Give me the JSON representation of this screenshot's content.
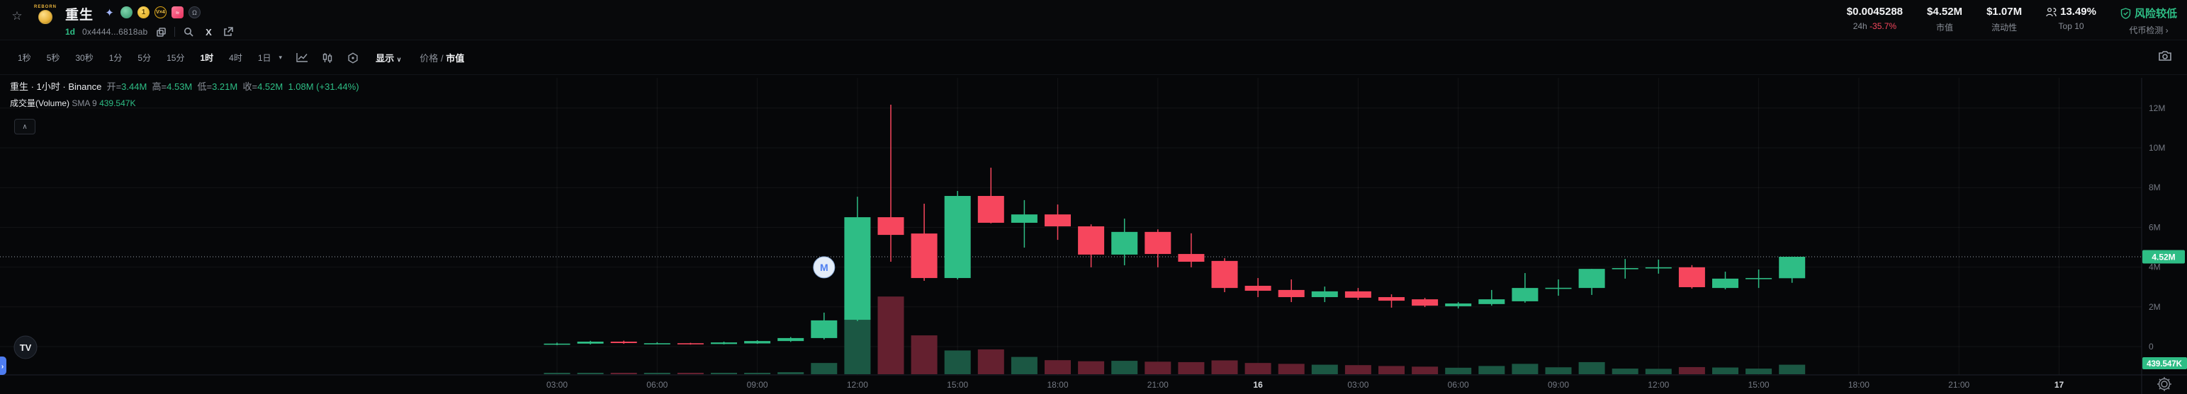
{
  "header": {
    "token": {
      "logo_text": "REBORN",
      "name": "重生",
      "age": "1d",
      "address": "0x4444...6818ab",
      "badges": [
        "sparkle-icon",
        "hand-icon",
        "coin-icon",
        "v-x4-icon",
        "pink-badge-icon",
        "ghost-icon"
      ],
      "vx4_label": "V×4",
      "coin_label": "1"
    },
    "stats": {
      "price": "$0.0045288",
      "change_label": "24h",
      "change": "-35.7%",
      "mcap": "$4.52M",
      "mcap_label": "市值",
      "liquidity": "$1.07M",
      "liquidity_label": "流动性",
      "top10": "13.49%",
      "top10_label": "Top 10",
      "risk": "风险较低",
      "risk_link": "代币检测 ›"
    }
  },
  "toolbar": {
    "timeframes": [
      "1秒",
      "5秒",
      "30秒",
      "1分",
      "5分",
      "15分",
      "1时",
      "4时",
      "1日"
    ],
    "active_timeframe": "1时",
    "display_label": "显示",
    "display_chevron": "∨",
    "price_label": "价格",
    "separator": "/",
    "mcap_label": "市值"
  },
  "legend": {
    "title": "重生 · 1小时 · Binance",
    "open_label": "开=",
    "open": "3.44M",
    "high_label": "高=",
    "high": "4.53M",
    "low_label": "低=",
    "low": "3.21M",
    "close_label": "收=",
    "close": "4.52M",
    "change": "1.08M (+31.44%)",
    "volume_label": "成交量(Volume)",
    "sma_label": "SMA 9",
    "volume_value": "439.547K",
    "collapse_glyph": "∧"
  },
  "colors": {
    "up": "#2ebd85",
    "down": "#f6465d",
    "vol_up": "#1b5743",
    "vol_down": "#64202f",
    "badge_bg": "#2ebd85",
    "grid": "rgba(255,255,255,0.055)",
    "axis_border": "#1e222a",
    "tab_blue": "#4e7cf0"
  },
  "chart_data": {
    "type": "candlestick_with_volume",
    "title": "重生 · 1小时 · Binance (market cap, USD)",
    "ylabel": "Market cap",
    "ylim_m": [
      0,
      13.5
    ],
    "y_ticks": [
      {
        "label": "12M",
        "value_m": 12
      },
      {
        "label": "10M",
        "value_m": 10
      },
      {
        "label": "8M",
        "value_m": 8
      },
      {
        "label": "6M",
        "value_m": 6
      },
      {
        "label": "4M",
        "value_m": 4
      },
      {
        "label": "2M",
        "value_m": 2
      },
      {
        "label": "0",
        "value_m": 0
      }
    ],
    "x_ticks": [
      {
        "label": "03:00"
      },
      {
        "label": "06:00"
      },
      {
        "label": "09:00"
      },
      {
        "label": "12:00"
      },
      {
        "label": "15:00"
      },
      {
        "label": "18:00"
      },
      {
        "label": "21:00"
      },
      {
        "label": "16",
        "bold": true
      },
      {
        "label": "03:00"
      },
      {
        "label": "06:00"
      },
      {
        "label": "09:00"
      },
      {
        "label": "12:00"
      },
      {
        "label": "15:00"
      },
      {
        "label": "18:00"
      },
      {
        "label": "21:00"
      },
      {
        "label": "17",
        "bold": true
      }
    ],
    "candles_unit": "millions USD mcap, volume in thousands",
    "candles": [
      {
        "o": 0.1,
        "h": 0.2,
        "l": 0.07,
        "c": 0.15,
        "v": 30
      },
      {
        "o": 0.15,
        "h": 0.29,
        "l": 0.11,
        "c": 0.25,
        "v": 55
      },
      {
        "o": 0.25,
        "h": 0.3,
        "l": 0.14,
        "c": 0.18,
        "v": 45
      },
      {
        "o": 0.14,
        "h": 0.22,
        "l": 0.12,
        "c": 0.17,
        "v": 25
      },
      {
        "o": 0.17,
        "h": 0.19,
        "l": 0.1,
        "c": 0.13,
        "v": 30
      },
      {
        "o": 0.13,
        "h": 0.25,
        "l": 0.11,
        "c": 0.21,
        "v": 40
      },
      {
        "o": 0.16,
        "h": 0.32,
        "l": 0.14,
        "c": 0.28,
        "v": 60
      },
      {
        "o": 0.28,
        "h": 0.48,
        "l": 0.24,
        "c": 0.43,
        "v": 95
      },
      {
        "o": 0.43,
        "h": 1.71,
        "l": 0.36,
        "c": 1.32,
        "v": 520
      },
      {
        "o": 1.35,
        "h": 7.54,
        "l": 1.28,
        "c": 6.51,
        "v": 2600
      },
      {
        "o": 6.51,
        "h": 12.17,
        "l": 4.27,
        "c": 5.62,
        "v": 3600
      },
      {
        "o": 5.69,
        "h": 7.19,
        "l": 3.31,
        "c": 3.45,
        "v": 1800
      },
      {
        "o": 3.45,
        "h": 7.83,
        "l": 3.38,
        "c": 7.58,
        "v": 1100
      },
      {
        "o": 7.58,
        "h": 9.0,
        "l": 6.2,
        "c": 6.23,
        "v": 1150
      },
      {
        "o": 6.23,
        "h": 7.37,
        "l": 4.98,
        "c": 6.65,
        "v": 800
      },
      {
        "o": 6.65,
        "h": 7.15,
        "l": 5.37,
        "c": 6.05,
        "v": 650
      },
      {
        "o": 6.05,
        "h": 6.15,
        "l": 3.99,
        "c": 4.63,
        "v": 600
      },
      {
        "o": 4.63,
        "h": 6.44,
        "l": 4.09,
        "c": 5.77,
        "v": 620
      },
      {
        "o": 5.77,
        "h": 5.9,
        "l": 3.99,
        "c": 4.66,
        "v": 580
      },
      {
        "o": 4.66,
        "h": 5.7,
        "l": 3.99,
        "c": 4.27,
        "v": 560
      },
      {
        "o": 4.31,
        "h": 4.45,
        "l": 2.74,
        "c": 2.95,
        "v": 640
      },
      {
        "o": 3.06,
        "h": 3.45,
        "l": 2.49,
        "c": 2.81,
        "v": 520
      },
      {
        "o": 2.85,
        "h": 3.38,
        "l": 2.24,
        "c": 2.49,
        "v": 480
      },
      {
        "o": 2.49,
        "h": 3.02,
        "l": 2.24,
        "c": 2.78,
        "v": 440
      },
      {
        "o": 2.78,
        "h": 2.95,
        "l": 2.35,
        "c": 2.46,
        "v": 420
      },
      {
        "o": 2.49,
        "h": 2.63,
        "l": 1.96,
        "c": 2.31,
        "v": 380
      },
      {
        "o": 2.38,
        "h": 2.45,
        "l": 1.99,
        "c": 2.06,
        "v": 350
      },
      {
        "o": 2.03,
        "h": 2.24,
        "l": 1.92,
        "c": 2.17,
        "v": 300
      },
      {
        "o": 2.14,
        "h": 2.85,
        "l": 2.06,
        "c": 2.38,
        "v": 380
      },
      {
        "o": 2.28,
        "h": 3.7,
        "l": 2.21,
        "c": 2.95,
        "v": 480
      },
      {
        "o": 2.92,
        "h": 3.38,
        "l": 2.56,
        "c": 2.96,
        "v": 320
      },
      {
        "o": 2.95,
        "h": 3.91,
        "l": 2.6,
        "c": 3.91,
        "v": 560
      },
      {
        "o": 3.91,
        "h": 4.41,
        "l": 3.42,
        "c": 3.95,
        "v": 260
      },
      {
        "o": 3.95,
        "h": 4.38,
        "l": 3.67,
        "c": 3.99,
        "v": 250
      },
      {
        "o": 3.99,
        "h": 4.1,
        "l": 2.92,
        "c": 2.99,
        "v": 330
      },
      {
        "o": 2.95,
        "h": 3.77,
        "l": 2.88,
        "c": 3.42,
        "v": 310
      },
      {
        "o": 3.42,
        "h": 3.88,
        "l": 2.95,
        "c": 3.45,
        "v": 260
      },
      {
        "o": 3.44,
        "h": 4.53,
        "l": 3.21,
        "c": 4.52,
        "v": 439.547
      }
    ],
    "price_line": {
      "value_m": 4.52,
      "badge": "4.52M"
    },
    "volume_badge": "439.547K",
    "marker": {
      "label": "M",
      "candle_index": 8,
      "value_m": 3.99
    },
    "legend_position": "top-left",
    "grid": true
  },
  "footer": {
    "tv_logo": "TV"
  }
}
